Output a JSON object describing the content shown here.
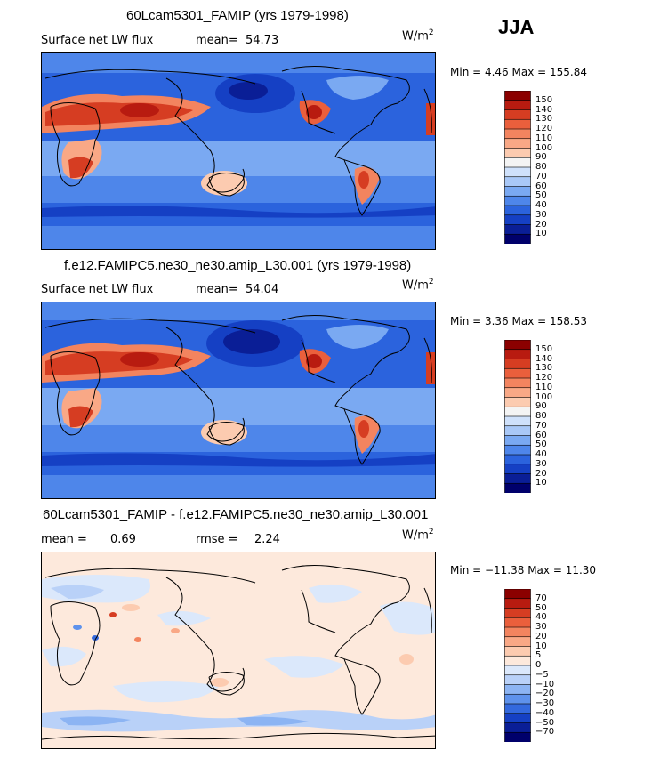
{
  "season": "JJA",
  "panels": [
    {
      "title": "60Lcam5301_FAMIP (yrs 1979-1998)",
      "subtitle_left": "Surface net LW flux",
      "stat_label": "mean=",
      "stat_value": "54.73",
      "units": "W/m",
      "units_exp": "2",
      "minmax": "Min =    4.46 Max = 155.84"
    },
    {
      "title": "f.e12.FAMIPC5.ne30_ne30.amip_L30.001 (yrs 1979-1998)",
      "subtitle_left": "Surface net LW flux",
      "stat_label": "mean=",
      "stat_value": "54.04",
      "units": "W/m",
      "units_exp": "2",
      "minmax": "Min =    3.36 Max = 158.53"
    },
    {
      "title": "60Lcam5301_FAMIP - f.e12.FAMIPC5.ne30_ne30.amip_L30.001",
      "subtitle_left": "mean =",
      "subtitle_left_value": "0.69",
      "stat_label": "rmse =",
      "stat_value": "2.24",
      "units": "W/m",
      "units_exp": "2",
      "minmax": "Min = −11.38 Max =  11.30"
    }
  ],
  "chart_data": [
    {
      "type": "heatmap",
      "title": "60Lcam5301_FAMIP (yrs 1979-1998)",
      "variable": "Surface net LW flux",
      "mean": 54.73,
      "min": 4.46,
      "max": 155.84,
      "units": "W/m2",
      "colorbar_levels": [
        "150",
        "140",
        "130",
        "120",
        "110",
        "100",
        "90",
        "80",
        "70",
        "60",
        "50",
        "40",
        "30",
        "20",
        "10"
      ],
      "colorbar_colors": [
        "#8b0000",
        "#b81b10",
        "#d63d22",
        "#ea5f3c",
        "#f3845f",
        "#f9a886",
        "#fccbb0",
        "#f4f4f4",
        "#cfe1fb",
        "#a9c8f7",
        "#7aa9f2",
        "#4e86ea",
        "#2b63dd",
        "#1540c4",
        "#0a1e96",
        "#00006b"
      ]
    },
    {
      "type": "heatmap",
      "title": "f.e12.FAMIPC5.ne30_ne30.amip_L30.001 (yrs 1979-1998)",
      "variable": "Surface net LW flux",
      "mean": 54.04,
      "min": 3.36,
      "max": 158.53,
      "units": "W/m2",
      "colorbar_levels": [
        "150",
        "140",
        "130",
        "120",
        "110",
        "100",
        "90",
        "80",
        "70",
        "60",
        "50",
        "40",
        "30",
        "20",
        "10"
      ],
      "colorbar_colors": [
        "#8b0000",
        "#b81b10",
        "#d63d22",
        "#ea5f3c",
        "#f3845f",
        "#f9a886",
        "#fccbb0",
        "#f4f4f4",
        "#cfe1fb",
        "#a9c8f7",
        "#7aa9f2",
        "#4e86ea",
        "#2b63dd",
        "#1540c4",
        "#0a1e96",
        "#00006b"
      ]
    },
    {
      "type": "heatmap",
      "title": "60Lcam5301_FAMIP - f.e12.FAMIPC5.ne30_ne30.amip_L30.001",
      "mean": 0.69,
      "rmse": 2.24,
      "min": -11.38,
      "max": 11.3,
      "units": "W/m2",
      "colorbar_levels": [
        "70",
        "50",
        "40",
        "30",
        "20",
        "10",
        "5",
        "0",
        "−5",
        "−10",
        "−20",
        "−30",
        "−40",
        "−50",
        "−70"
      ],
      "colorbar_colors": [
        "#8b0000",
        "#b81b10",
        "#d63d22",
        "#ea5f3c",
        "#f3845f",
        "#f9a886",
        "#fccbb0",
        "#fde9dc",
        "#dbe8fb",
        "#b9d1f8",
        "#8cb4f3",
        "#5e92ec",
        "#3369de",
        "#1540c4",
        "#0a1e96",
        "#00006b"
      ]
    }
  ]
}
